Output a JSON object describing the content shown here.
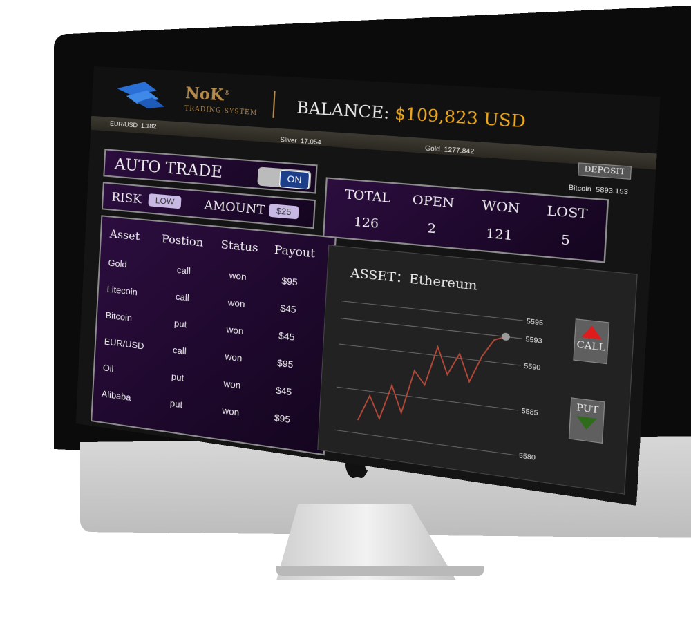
{
  "brand": {
    "name": "NoK",
    "registered": "®",
    "subtitle": "TRADING SYSTEM"
  },
  "balance": {
    "label": "BALANCE:",
    "value": "$109,823 USD",
    "value_color": "#f0a81c"
  },
  "ticker": [
    {
      "symbol": "EUR/USD",
      "price": "1.182"
    },
    {
      "symbol": "Silver",
      "price": "17.054"
    },
    {
      "symbol": "Gold",
      "price": "1277.842"
    },
    {
      "symbol": "Bitcoin",
      "price": "5893.153"
    }
  ],
  "deposit_label": "DEPOSIT",
  "auto_trade": {
    "label": "AUTO TRADE",
    "toggle": "ON"
  },
  "risk": {
    "label": "RISK",
    "value": "LOW"
  },
  "amount": {
    "label": "AMOUNT",
    "value": "$25"
  },
  "table": {
    "headers": [
      "Asset",
      "Postion",
      "Status",
      "Payout"
    ],
    "rows": [
      [
        "Gold",
        "call",
        "won",
        "$95"
      ],
      [
        "Litecoin",
        "call",
        "won",
        "$45"
      ],
      [
        "Bitcoin",
        "put",
        "won",
        "$45"
      ],
      [
        "EUR/USD",
        "call",
        "won",
        "$95"
      ],
      [
        "Oil",
        "put",
        "won",
        "$45"
      ],
      [
        "Alibaba",
        "put",
        "won",
        "$95"
      ]
    ]
  },
  "stats": [
    {
      "label": "TOTAL",
      "value": "126"
    },
    {
      "label": "OPEN",
      "value": "2"
    },
    {
      "label": "WON",
      "value": "121"
    },
    {
      "label": "LOST",
      "value": "5"
    }
  ],
  "chart": {
    "title": "ASSET：Ethereum",
    "y_ticks": [
      "5595",
      "5593",
      "5590",
      "5585",
      "5580"
    ],
    "call_label": "CALL",
    "put_label": "PUT",
    "line_color": "#b94a3a",
    "call_color": "#e01b1b",
    "put_color": "#2e6b1a"
  },
  "chart_data": {
    "type": "line",
    "title": "ASSET：Ethereum",
    "xlabel": "",
    "ylabel": "",
    "yticks": [
      5580,
      5585,
      5590,
      5593,
      5595
    ],
    "ylim": [
      5579,
      5596
    ],
    "series": [
      {
        "values": [
          5581.5,
          5584.5,
          5582,
          5586,
          5583,
          5588,
          5586.5,
          5591,
          5588,
          5590.5,
          5587.5,
          5590.5,
          5592.5,
          5593
        ]
      }
    ]
  }
}
